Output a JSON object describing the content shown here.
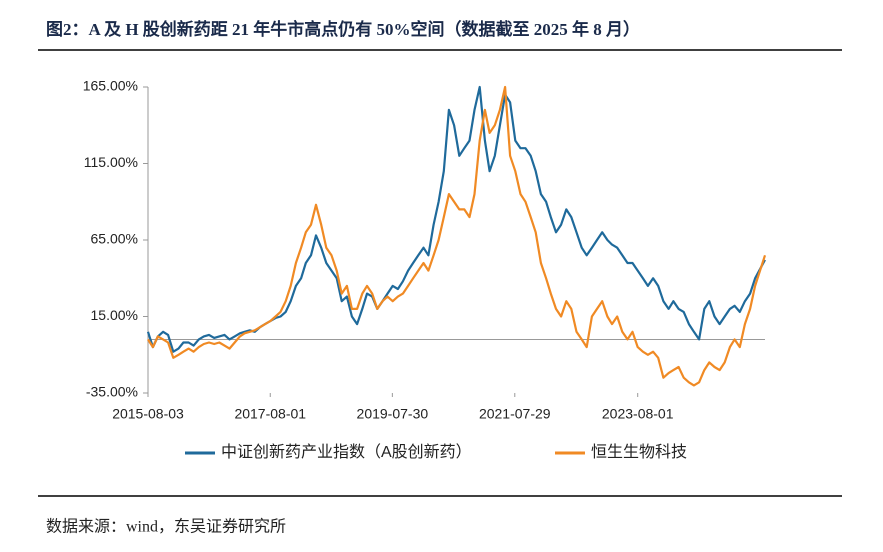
{
  "chart_data": {
    "type": "line",
    "title": "图2：A 及 H 股创新药距 21 年牛市高点仍有 50%空间（数据截至 2025 年 8 月）",
    "source": "数据来源：wind，东吴证券研究所",
    "x": [
      "2015-08-03",
      "2015-09-01",
      "2015-10-01",
      "2015-11-01",
      "2015-12-01",
      "2016-01-01",
      "2016-02-01",
      "2016-03-01",
      "2016-04-01",
      "2016-05-01",
      "2016-06-01",
      "2016-07-01",
      "2016-08-01",
      "2016-09-01",
      "2016-10-01",
      "2016-11-01",
      "2016-12-01",
      "2017-01-01",
      "2017-02-01",
      "2017-03-01",
      "2017-04-01",
      "2017-05-01",
      "2017-06-01",
      "2017-07-01",
      "2017-08-01",
      "2017-09-01",
      "2017-10-01",
      "2017-11-01",
      "2017-12-01",
      "2018-01-01",
      "2018-02-01",
      "2018-03-01",
      "2018-04-01",
      "2018-05-01",
      "2018-06-01",
      "2018-07-01",
      "2018-08-01",
      "2018-09-01",
      "2018-10-01",
      "2018-11-01",
      "2018-12-01",
      "2019-01-01",
      "2019-02-01",
      "2019-03-01",
      "2019-04-01",
      "2019-05-01",
      "2019-06-01",
      "2019-07-01",
      "2019-08-01",
      "2019-09-01",
      "2019-10-01",
      "2019-11-01",
      "2019-12-01",
      "2020-01-01",
      "2020-02-01",
      "2020-03-01",
      "2020-04-01",
      "2020-05-01",
      "2020-06-01",
      "2020-07-01",
      "2020-08-01",
      "2020-09-01",
      "2020-10-01",
      "2020-11-01",
      "2020-12-01",
      "2021-01-01",
      "2021-02-01",
      "2021-03-01",
      "2021-04-01",
      "2021-05-01",
      "2021-06-01",
      "2021-07-01",
      "2021-08-01",
      "2021-09-01",
      "2021-10-01",
      "2021-11-01",
      "2021-12-01",
      "2022-01-01",
      "2022-02-01",
      "2022-03-01",
      "2022-04-01",
      "2022-05-01",
      "2022-06-01",
      "2022-07-01",
      "2022-08-01",
      "2022-09-01",
      "2022-10-01",
      "2022-11-01",
      "2022-12-01",
      "2023-01-01",
      "2023-02-01",
      "2023-03-01",
      "2023-04-01",
      "2023-05-01",
      "2023-06-01",
      "2023-07-01",
      "2023-08-01",
      "2023-09-01",
      "2023-10-01",
      "2023-11-01",
      "2023-12-01",
      "2024-01-01",
      "2024-02-01",
      "2024-03-01",
      "2024-04-01",
      "2024-05-01",
      "2024-06-01",
      "2024-07-01",
      "2024-08-01",
      "2024-09-01",
      "2024-10-01",
      "2024-11-01",
      "2024-12-01",
      "2025-01-01",
      "2025-02-01",
      "2025-03-01",
      "2025-04-01",
      "2025-05-01",
      "2025-06-01",
      "2025-07-01",
      "2025-08-29"
    ],
    "series": [
      {
        "name": "中证创新药产业指数（A股创新药）",
        "color": "#1f6a9b",
        "values": [
          5,
          -5,
          2,
          5,
          3,
          -8,
          -6,
          -2,
          -2,
          -4,
          0,
          2,
          3,
          1,
          2,
          3,
          0,
          2,
          4,
          5,
          6,
          5,
          8,
          10,
          12,
          14,
          15,
          18,
          25,
          35,
          40,
          50,
          55,
          68,
          60,
          50,
          45,
          40,
          25,
          28,
          15,
          10,
          20,
          30,
          28,
          20,
          25,
          30,
          35,
          33,
          38,
          45,
          50,
          55,
          60,
          55,
          75,
          90,
          110,
          150,
          140,
          120,
          125,
          130,
          150,
          165,
          130,
          110,
          120,
          140,
          160,
          155,
          130,
          125,
          125,
          120,
          110,
          95,
          90,
          80,
          70,
          75,
          85,
          80,
          70,
          60,
          55,
          60,
          65,
          70,
          65,
          62,
          60,
          55,
          50,
          50,
          45,
          40,
          35,
          40,
          35,
          25,
          20,
          25,
          20,
          18,
          10,
          5,
          0,
          20,
          25,
          15,
          10,
          15,
          20,
          22,
          18,
          25,
          30,
          40,
          52
        ]
      },
      {
        "name": "恒生生物科技",
        "color": "#f08a24",
        "values": [
          0,
          -5,
          2,
          0,
          -2,
          -12,
          -10,
          -8,
          -6,
          -8,
          -5,
          -3,
          -2,
          -3,
          -2,
          -4,
          -6,
          -2,
          2,
          4,
          5,
          6,
          8,
          10,
          12,
          15,
          18,
          25,
          35,
          50,
          60,
          70,
          75,
          88,
          75,
          60,
          55,
          45,
          30,
          35,
          20,
          20,
          30,
          35,
          30,
          20,
          25,
          28,
          25,
          28,
          30,
          35,
          40,
          45,
          50,
          45,
          55,
          65,
          80,
          95,
          90,
          85,
          85,
          80,
          95,
          130,
          150,
          135,
          140,
          150,
          165,
          120,
          110,
          95,
          90,
          80,
          70,
          50,
          40,
          30,
          20,
          15,
          25,
          20,
          5,
          0,
          -5,
          15,
          20,
          25,
          15,
          10,
          15,
          5,
          0,
          5,
          -5,
          -8,
          -10,
          -8,
          -12,
          -25,
          -22,
          -20,
          -18,
          -25,
          -28,
          -30,
          -28,
          -20,
          -15,
          -18,
          -20,
          -15,
          -5,
          0,
          -5,
          10,
          20,
          35,
          55
        ]
      }
    ],
    "xlim": [
      "2015-08-03",
      "2025-08-29"
    ],
    "xticks": [
      "2015-08-03",
      "2017-08-01",
      "2019-07-30",
      "2021-07-29",
      "2023-08-01"
    ],
    "ylim": [
      -35,
      165
    ],
    "yticks": [
      {
        "value": -35,
        "label": "-35.00%"
      },
      {
        "value": 15,
        "label": "15.00%"
      },
      {
        "value": 65,
        "label": "65.00%"
      },
      {
        "value": 115,
        "label": "115.00%"
      },
      {
        "value": 165,
        "label": "165.00%"
      }
    ]
  }
}
